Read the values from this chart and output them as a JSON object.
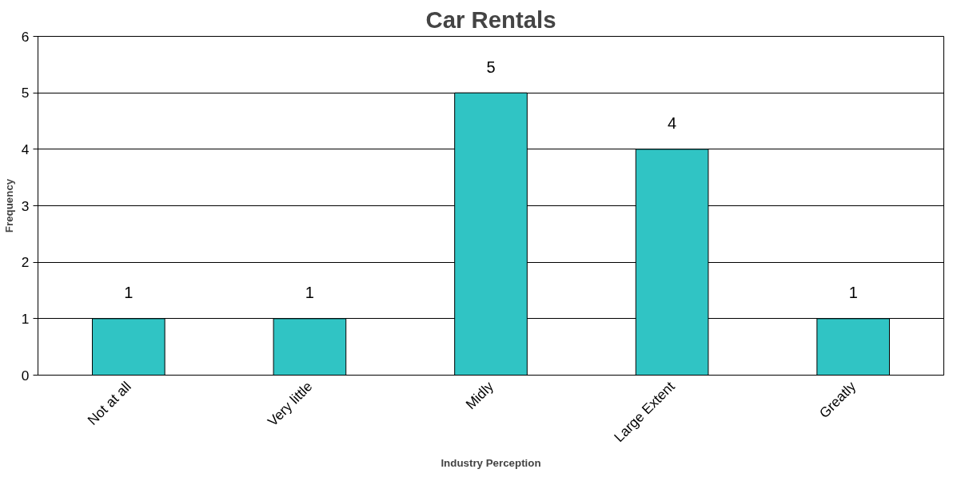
{
  "chart_data": {
    "type": "bar",
    "title": "Car Rentals",
    "xlabel": "Industry Perception",
    "ylabel": "Frequency",
    "categories": [
      "Not at all",
      "Very little",
      "Midly",
      "Large Extent",
      "Greatly"
    ],
    "values": [
      1,
      1,
      5,
      4,
      1
    ],
    "color": "#30c4c4",
    "ylim": [
      0,
      6
    ],
    "yticks": [
      0,
      1,
      2,
      3,
      4,
      5,
      6
    ],
    "grid": "y",
    "data_labels": true
  }
}
